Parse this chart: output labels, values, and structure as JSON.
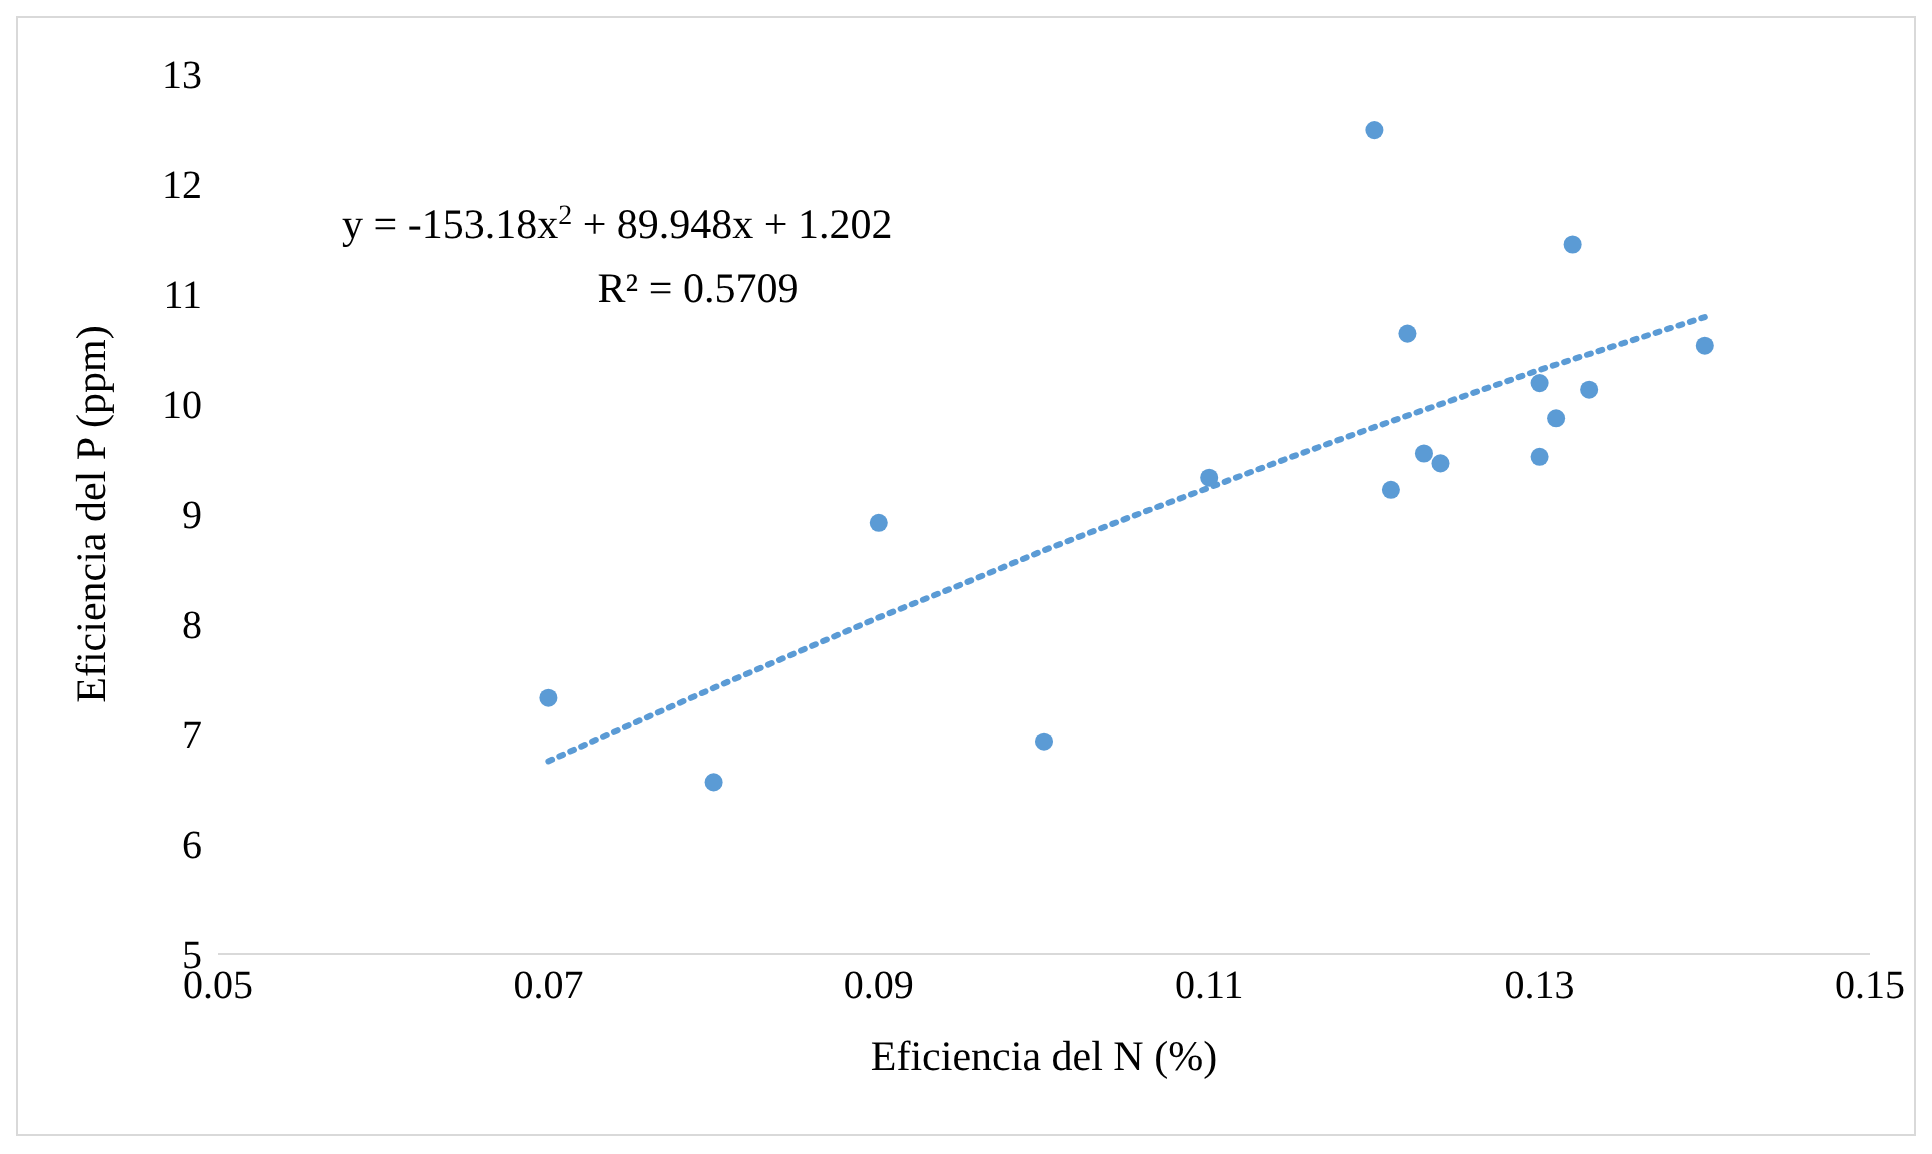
{
  "chart_data": {
    "type": "scatter",
    "xlabel": "Eficiencia del N (%)",
    "ylabel": "Eficiencia del P (ppm)",
    "xlim": [
      0.05,
      0.15
    ],
    "xticks": [
      {
        "value": 0.05,
        "label": "0.05"
      },
      {
        "value": 0.07,
        "label": "0.07"
      },
      {
        "value": 0.09,
        "label": "0.09"
      },
      {
        "value": 0.11,
        "label": "0.11"
      },
      {
        "value": 0.13,
        "label": "0.13"
      },
      {
        "value": 0.15,
        "label": "0.15"
      }
    ],
    "ylim": [
      5,
      13
    ],
    "yticks": [
      5,
      6,
      7,
      8,
      9,
      10,
      11,
      12,
      13
    ],
    "annotations": [
      "y = -153.18x$^{2}$ + 89.948x + 1.202",
      "R² = 0.5709"
    ],
    "series": [
      {
        "color": "#5b9bd5",
        "marker": "circle",
        "x": [
          0.07,
          0.08,
          0.09,
          0.1,
          0.11,
          0.12,
          0.121,
          0.122,
          0.123,
          0.124,
          0.13,
          0.13,
          0.131,
          0.132,
          0.133,
          0.14
        ],
        "values": [
          7.33,
          6.56,
          8.92,
          6.93,
          9.33,
          12.49,
          9.22,
          10.64,
          9.55,
          9.46,
          10.19,
          9.52,
          9.87,
          11.45,
          10.13,
          10.53
        ]
      },
      {
        "type": "line",
        "color": "#5b9bd5",
        "line_style": "dotted",
        "marker": "none",
        "x": [
          0.07,
          0.075,
          0.08,
          0.085,
          0.09,
          0.095,
          0.1,
          0.105,
          0.11,
          0.115,
          0.12,
          0.125,
          0.13,
          0.135,
          0.14
        ],
        "values": [
          6.75,
          7.09,
          7.42,
          7.74,
          8.06,
          8.36,
          8.67,
          8.96,
          9.24,
          9.52,
          9.79,
          10.05,
          10.31,
          10.55,
          10.79
        ]
      }
    ]
  }
}
